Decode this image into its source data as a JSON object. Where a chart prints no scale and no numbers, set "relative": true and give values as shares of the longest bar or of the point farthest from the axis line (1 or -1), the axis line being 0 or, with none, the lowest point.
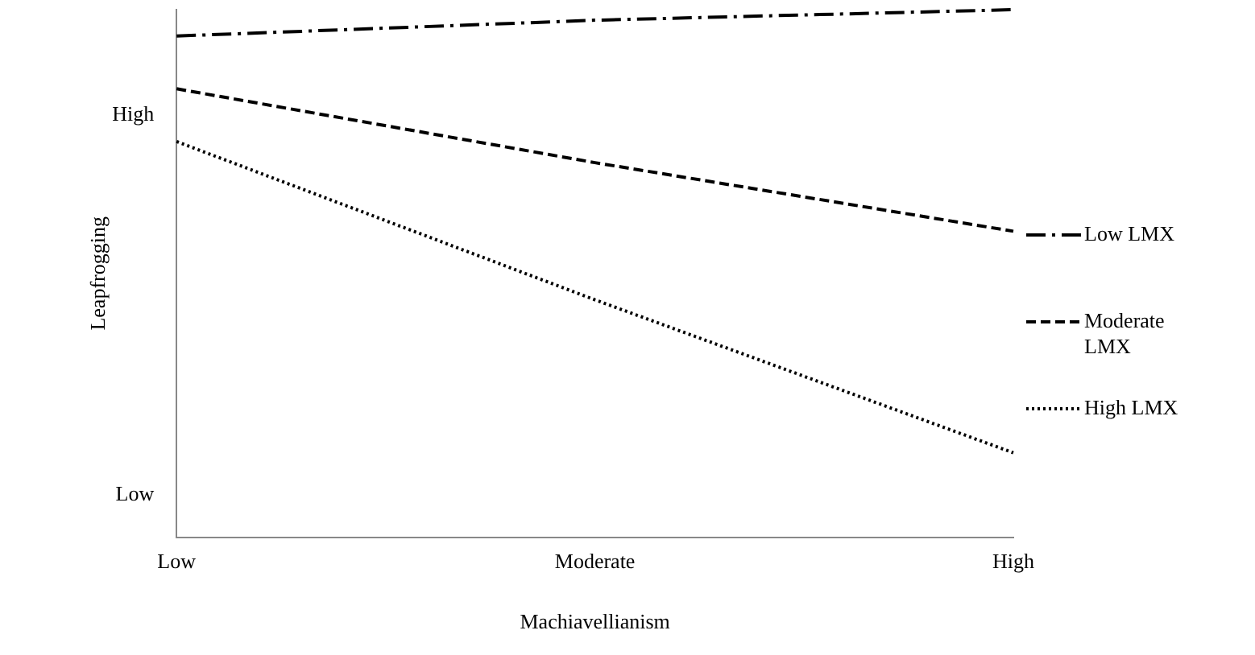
{
  "chart_data": {
    "type": "line",
    "xlabel": "Machiavellianism",
    "ylabel": "Leapfrogging",
    "categories": [
      "Low",
      "Moderate",
      "High"
    ],
    "series": [
      {
        "name": "Low LMX",
        "color": "#000000",
        "line_style": "dashdot",
        "values": [
          0.95,
          0.98,
          1
        ]
      },
      {
        "name": "Moderate LMX",
        "color": "#000000",
        "line_style": "dashed",
        "values": [
          0.85,
          0.71,
          0.58
        ]
      },
      {
        "name": "High LMX",
        "color": "#000000",
        "line_style": "dotted",
        "values": [
          0.75,
          0.45,
          0.16
        ]
      }
    ],
    "relative": true,
    "annotations": [
      "High",
      "Low"
    ],
    "legend": "right",
    "marker": "none"
  }
}
